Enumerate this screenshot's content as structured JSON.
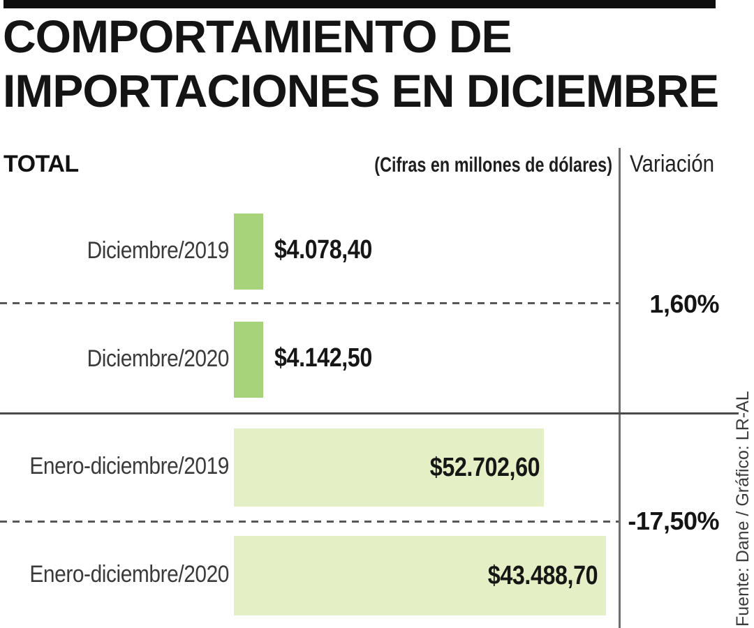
{
  "title": {
    "line1": "COMPORTAMIENTO DE",
    "line2": "IMPORTACIONES EN DICIEMBRE"
  },
  "header": {
    "left_label": "TOTAL",
    "units_note": "(Cifras en millones de dólares)",
    "variation_label": "Variación"
  },
  "rows": [
    {
      "label": "Diciembre/2019",
      "value_label": "$4.078,40"
    },
    {
      "label": "Diciembre/2020",
      "value_label": "$4.142,50"
    },
    {
      "label": "Enero-diciembre/2019",
      "value_label": "$52.702,60"
    },
    {
      "label": "Enero-diciembre/2020",
      "value_label": "$43.488,70"
    }
  ],
  "variations": [
    {
      "label": "1,60%"
    },
    {
      "label": "-17,50%"
    }
  ],
  "source_credit": "Fuente: Dane / Gráfico: LR-AL",
  "colors": {
    "bar_small": "#a7d37a",
    "bar_large": "#e5efc5",
    "top_bar": "#0d0d0d",
    "divider_line": "#6f6f6f",
    "separator_solid": "#4a4a4a",
    "separator_dashed": "#585858"
  },
  "chart_data": {
    "type": "bar",
    "title": "Comportamiento de importaciones en diciembre",
    "unit": "millones de dólares",
    "categories": [
      "Diciembre/2019",
      "Diciembre/2020",
      "Enero-diciembre/2019",
      "Enero-diciembre/2020"
    ],
    "values": [
      4078.4,
      4142.5,
      52702.6,
      43488.7
    ],
    "value_labels": [
      "$4.078,40",
      "$4.142,50",
      "$52.702,60",
      "$43.488,70"
    ],
    "groups": [
      {
        "name": "Diciembre",
        "members": [
          "Diciembre/2019",
          "Diciembre/2020"
        ],
        "variation_pct": 1.6,
        "variation_label": "1,60%"
      },
      {
        "name": "Enero-diciembre",
        "members": [
          "Enero-diciembre/2019",
          "Enero-diciembre/2020"
        ],
        "variation_pct": -17.5,
        "variation_label": "-17,50%"
      }
    ],
    "legend": "none",
    "grid": false,
    "source": "Fuente: Dane / Gráfico: LR-AL"
  }
}
